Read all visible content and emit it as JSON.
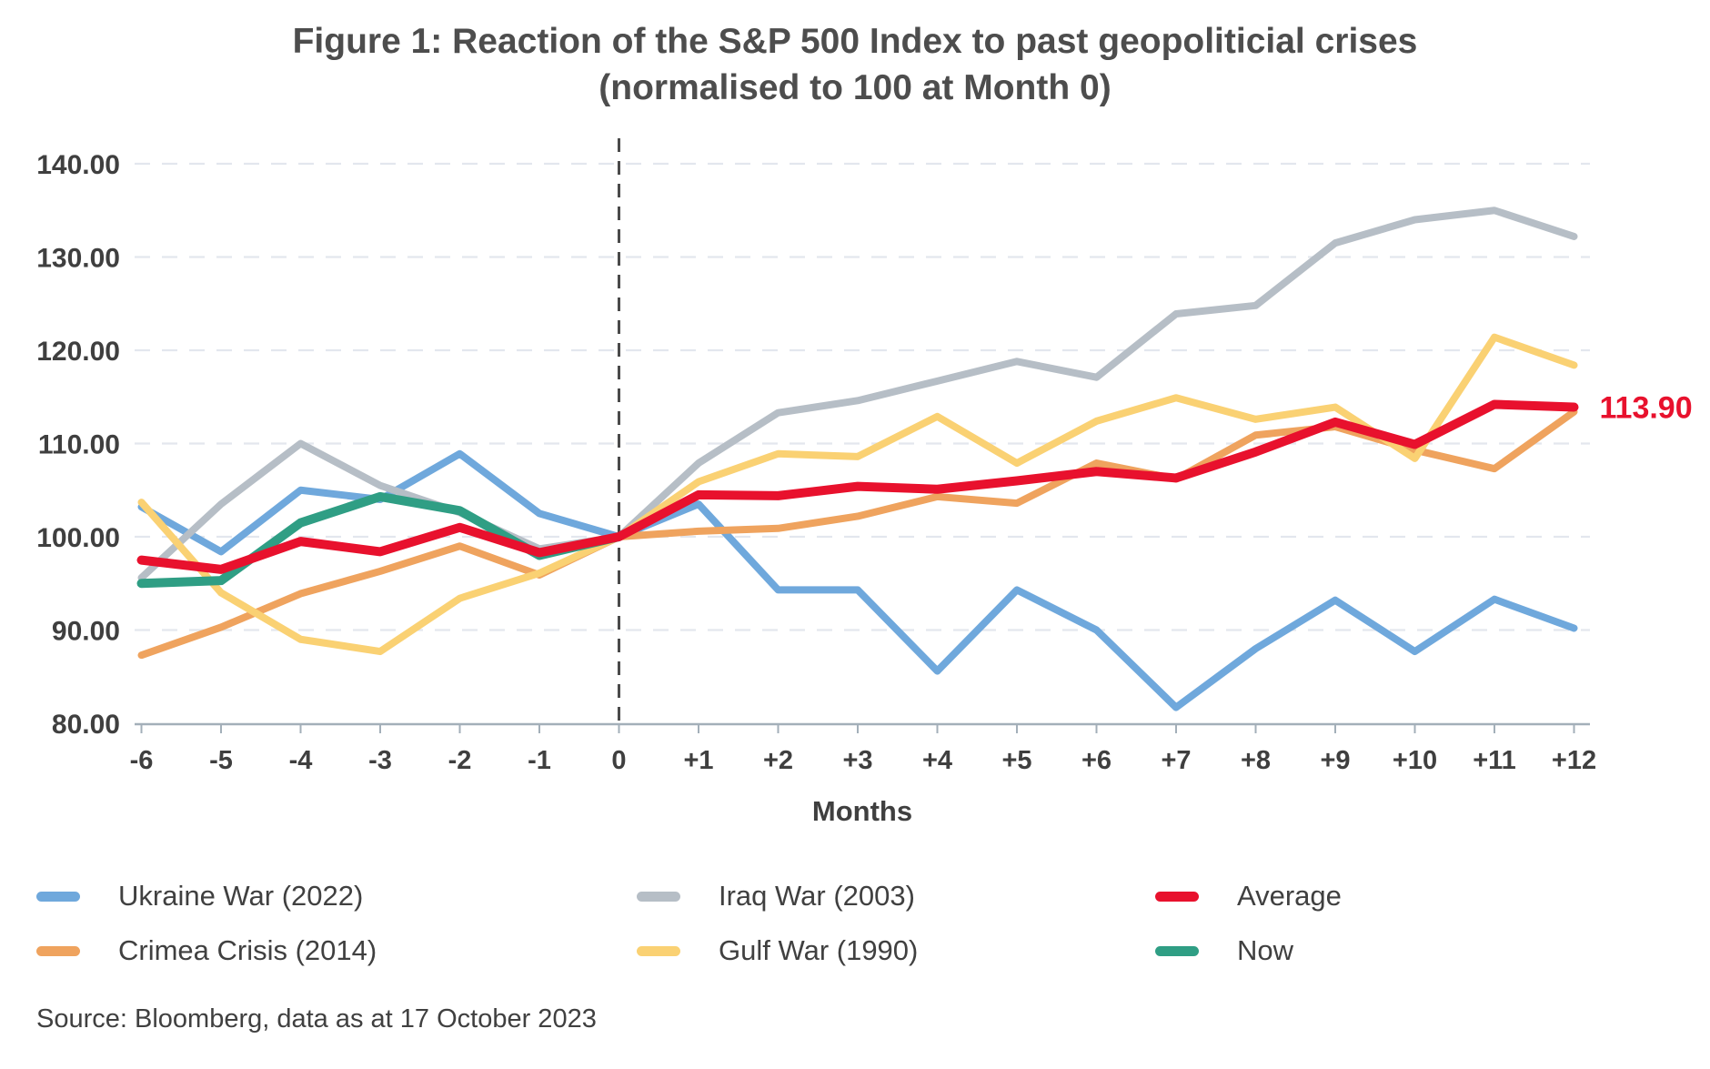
{
  "title": {
    "line1": "Figure 1: Reaction of the S&P 500 Index to past geopoliticial crises",
    "line2": "(normalised to 100 at Month 0)"
  },
  "source_text": "Source: Bloomberg, data as at 17 October 2023",
  "annotation": {
    "text": "113.90",
    "value": 113.9,
    "color": "#e8112d"
  },
  "colors": {
    "axis": "#a3afb9",
    "gridline": "#e3e7ee",
    "event_line": "#4a4a4a",
    "tick_text": "#3f3f3f",
    "title_text": "#4d4d4d"
  },
  "chart_data": {
    "type": "line",
    "title": "Figure 1: Reaction of the S&P 500 Index to past geopoliticial crises (normalised to 100 at Month 0)",
    "xlabel": "Months",
    "ylabel": "",
    "ylim": [
      80,
      140
    ],
    "grid": "horizontal dashed",
    "legend_position": "bottom",
    "event_line_x": 0,
    "x": [
      -6,
      -5,
      -4,
      -3,
      -2,
      -1,
      0,
      1,
      2,
      3,
      4,
      5,
      6,
      7,
      8,
      9,
      10,
      11,
      12
    ],
    "x_tick_labels": [
      "-6",
      "-5",
      "-4",
      "-3",
      "-2",
      "-1",
      "0",
      "+1",
      "+2",
      "+3",
      "+4",
      "+5",
      "+6",
      "+7",
      "+8",
      "+9",
      "+10",
      "+11",
      "+12"
    ],
    "y_ticks": [
      140,
      130,
      120,
      110,
      100,
      90,
      80
    ],
    "y_tick_labels": [
      "140.00",
      "130.00",
      "120.00",
      "110.00",
      "100.00",
      "90.00",
      "80.00"
    ],
    "series": [
      {
        "name": "Ukraine War (2022)",
        "color": "#6fa8dc",
        "width": 8,
        "values": [
          103.2,
          98.4,
          105.0,
          104.0,
          108.9,
          102.5,
          100.0,
          103.5,
          94.3,
          94.3,
          85.6,
          94.3,
          90.0,
          81.7,
          88.0,
          93.2,
          87.7,
          93.3,
          90.2
        ]
      },
      {
        "name": "Crimea Crisis (2014)",
        "color": "#efa35e",
        "width": 8,
        "values": [
          87.3,
          90.3,
          93.9,
          96.3,
          99.0,
          95.9,
          100.0,
          100.6,
          100.9,
          102.2,
          104.3,
          103.6,
          107.9,
          106.2,
          110.9,
          111.8,
          109.3,
          107.3,
          113.4
        ]
      },
      {
        "name": "Iraq War (2003)",
        "color": "#b6bec6",
        "width": 8,
        "values": [
          95.6,
          103.5,
          110.0,
          105.5,
          102.6,
          98.7,
          100.0,
          107.9,
          113.3,
          114.6,
          116.7,
          118.8,
          117.1,
          123.9,
          124.8,
          131.5,
          134.0,
          135.0,
          132.2
        ]
      },
      {
        "name": "Gulf War (1990)",
        "color": "#fad173",
        "width": 8,
        "values": [
          103.7,
          94.0,
          89.0,
          87.7,
          93.4,
          96.1,
          100.0,
          105.9,
          108.9,
          108.6,
          112.9,
          107.9,
          112.4,
          114.9,
          112.6,
          113.9,
          108.4,
          121.4,
          118.4
        ]
      },
      {
        "name": "Now",
        "color": "#2f9e84",
        "width": 10,
        "values": [
          95.0,
          95.3,
          101.5,
          104.3,
          102.8,
          98.0,
          100.0
        ]
      },
      {
        "name": "Average",
        "color": "#e8112d",
        "width": 10,
        "values": [
          97.5,
          96.5,
          99.5,
          98.4,
          101.0,
          98.3,
          100.0,
          104.5,
          104.4,
          105.4,
          105.1,
          106.0,
          107.0,
          106.3,
          109.1,
          112.3,
          109.9,
          114.2,
          113.9
        ]
      }
    ],
    "legend_order_rows": [
      [
        "Ukraine War (2022)",
        "Iraq War (2003)",
        "Average"
      ],
      [
        "Crimea Crisis (2014)",
        "Gulf War (1990)",
        "Now"
      ]
    ]
  }
}
